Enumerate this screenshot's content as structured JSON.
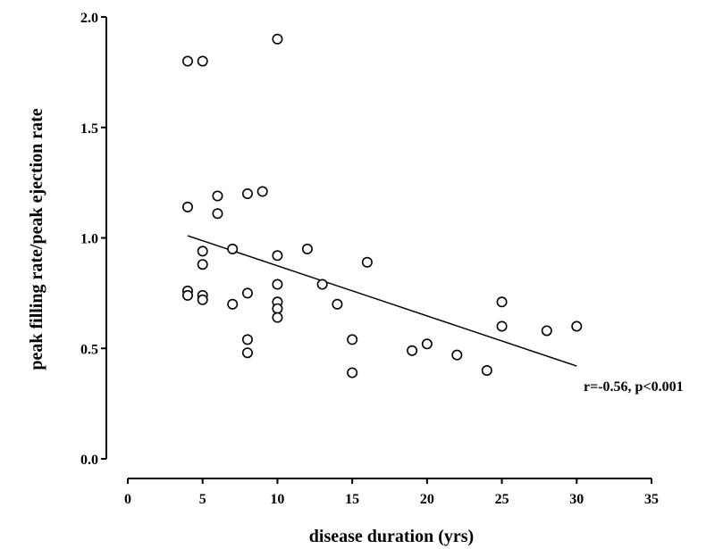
{
  "chart_data": {
    "type": "scatter",
    "xlabel": "disease duration (yrs)",
    "ylabel": "peak filling rate/peak ejection rate",
    "xlim": [
      0,
      35
    ],
    "ylim": [
      0,
      2.0
    ],
    "xticks": [
      "0",
      "5",
      "10",
      "15",
      "20",
      "25",
      "30",
      "35"
    ],
    "yticks": [
      "0.0",
      "0.5",
      "1.0",
      "1.5",
      "2.0"
    ],
    "grid": false,
    "points": [
      {
        "x": 4,
        "y": 1.8
      },
      {
        "x": 5,
        "y": 1.8
      },
      {
        "x": 10,
        "y": 1.9
      },
      {
        "x": 4,
        "y": 1.14
      },
      {
        "x": 6,
        "y": 1.19
      },
      {
        "x": 6,
        "y": 1.11
      },
      {
        "x": 8,
        "y": 1.2
      },
      {
        "x": 9,
        "y": 1.21
      },
      {
        "x": 7,
        "y": 0.95
      },
      {
        "x": 5,
        "y": 0.94
      },
      {
        "x": 5,
        "y": 0.88
      },
      {
        "x": 10,
        "y": 0.92
      },
      {
        "x": 12,
        "y": 0.95
      },
      {
        "x": 16,
        "y": 0.89
      },
      {
        "x": 4,
        "y": 0.76
      },
      {
        "x": 4,
        "y": 0.74
      },
      {
        "x": 5,
        "y": 0.74
      },
      {
        "x": 5,
        "y": 0.72
      },
      {
        "x": 7,
        "y": 0.7
      },
      {
        "x": 8,
        "y": 0.75
      },
      {
        "x": 10,
        "y": 0.79
      },
      {
        "x": 10,
        "y": 0.71
      },
      {
        "x": 10,
        "y": 0.68
      },
      {
        "x": 10,
        "y": 0.64
      },
      {
        "x": 13,
        "y": 0.79
      },
      {
        "x": 14,
        "y": 0.7
      },
      {
        "x": 8,
        "y": 0.54
      },
      {
        "x": 8,
        "y": 0.48
      },
      {
        "x": 15,
        "y": 0.54
      },
      {
        "x": 15,
        "y": 0.39
      },
      {
        "x": 19,
        "y": 0.49
      },
      {
        "x": 20,
        "y": 0.52
      },
      {
        "x": 22,
        "y": 0.47
      },
      {
        "x": 24,
        "y": 0.4
      },
      {
        "x": 25,
        "y": 0.71
      },
      {
        "x": 25,
        "y": 0.6
      },
      {
        "x": 28,
        "y": 0.58
      },
      {
        "x": 30,
        "y": 0.6
      }
    ],
    "fit_line": {
      "x": [
        4,
        30
      ],
      "y": [
        1.01,
        0.42
      ]
    },
    "annotation": "r=-0.56, p<0.001"
  }
}
